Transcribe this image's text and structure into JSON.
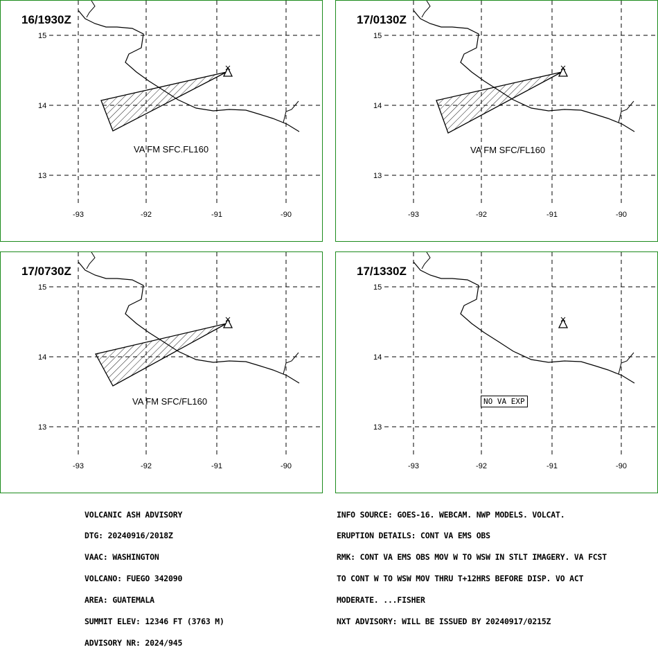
{
  "panels": [
    {
      "time": "16/1930Z",
      "label": "VA FM SFC.FL160",
      "no_va": null,
      "has_polygon": true
    },
    {
      "time": "17/0130Z",
      "label": "VA FM SFC/FL160",
      "no_va": null,
      "has_polygon": true
    },
    {
      "time": "17/0730Z",
      "label": "VA FM SFC/FL160",
      "no_va": null,
      "has_polygon": true
    },
    {
      "time": "17/1330Z",
      "label": null,
      "no_va": "NO VA EXP",
      "has_polygon": false
    }
  ],
  "axes": {
    "lon_ticks": [
      "-93",
      "-92",
      "-91",
      "-90"
    ],
    "lat_ticks": [
      "15",
      "14",
      "13"
    ]
  },
  "colors": {
    "panel_border": "#1a8a1a",
    "lines": "#000000"
  },
  "advisory_left": [
    "VOLCANIC ASH ADVISORY",
    "DTG: 20240916/2018Z",
    "VAAC: WASHINGTON",
    "VOLCANO: FUEGO 342090",
    "AREA: GUATEMALA",
    "SUMMIT ELEV: 12346 FT (3763 M)",
    "ADVISORY NR: 2024/945"
  ],
  "advisory_right": [
    "INFO SOURCE: GOES-16. WEBCAM. NWP MODELS. VOLCAT.",
    "ERUPTION DETAILS: CONT VA EMS OBS",
    "RMK: CONT VA EMS OBS MOV W TO WSW IN STLT IMAGERY. VA FCST",
    "TO CONT W TO WSW MOV THRU T+12HRS BEFORE DISP. VO ACT",
    "MODERATE. ...FISHER",
    "NXT ADVISORY: WILL BE ISSUED BY 20240917/0215Z"
  ]
}
